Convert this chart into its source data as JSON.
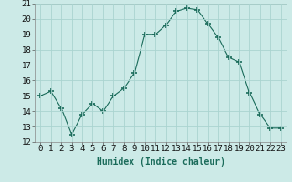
{
  "x": [
    0,
    1,
    2,
    3,
    4,
    5,
    6,
    7,
    8,
    9,
    10,
    11,
    12,
    13,
    14,
    15,
    16,
    17,
    18,
    19,
    20,
    21,
    22,
    23
  ],
  "y": [
    15.0,
    15.3,
    14.2,
    12.5,
    13.8,
    14.5,
    14.0,
    15.0,
    15.5,
    16.5,
    19.0,
    19.0,
    19.6,
    20.5,
    20.7,
    20.6,
    19.7,
    18.8,
    17.5,
    17.2,
    15.2,
    13.8,
    12.9,
    12.9
  ],
  "xlabel": "Humidex (Indice chaleur)",
  "ylim": [
    12,
    21
  ],
  "xlim": [
    -0.5,
    23.5
  ],
  "yticks": [
    12,
    13,
    14,
    15,
    16,
    17,
    18,
    19,
    20,
    21
  ],
  "line_color": "#1a6b5a",
  "marker": "+",
  "marker_size": 4,
  "bg_color": "#cceae7",
  "grid_color": "#aad4d0",
  "label_fontsize": 7,
  "tick_fontsize": 6.5
}
